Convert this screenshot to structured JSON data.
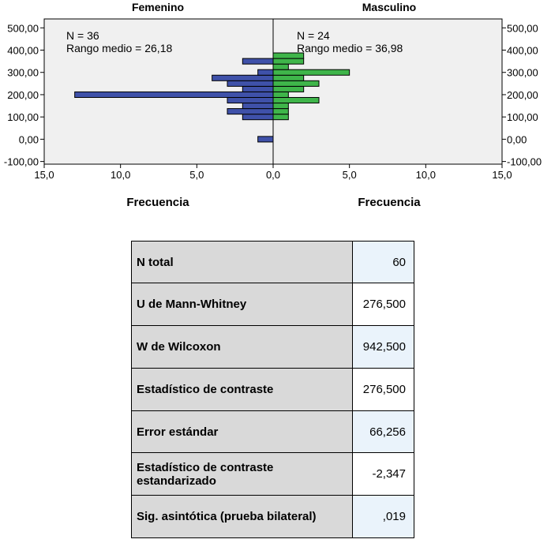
{
  "chart_data": {
    "type": "bar",
    "orientation": "horizontal",
    "layout": "back-to-back",
    "panels": [
      {
        "title": "Femenino",
        "n_label": "N = 36",
        "rank_label": "Rango medio = 26,18",
        "color": "#3f51a9",
        "direction": "left"
      },
      {
        "title": "Masculino",
        "n_label": "N = 24",
        "rank_label": "Rango medio = 36,98",
        "color": "#3fb54a",
        "direction": "right"
      }
    ],
    "bin_width": 25,
    "series": [
      {
        "name": "Femenino",
        "bins": [
          {
            "y": 0,
            "count": 1
          },
          {
            "y": 100,
            "count": 2
          },
          {
            "y": 125,
            "count": 3
          },
          {
            "y": 150,
            "count": 2
          },
          {
            "y": 175,
            "count": 3
          },
          {
            "y": 200,
            "count": 13
          },
          {
            "y": 225,
            "count": 2
          },
          {
            "y": 250,
            "count": 3
          },
          {
            "y": 275,
            "count": 4
          },
          {
            "y": 300,
            "count": 1
          },
          {
            "y": 350,
            "count": 2
          }
        ]
      },
      {
        "name": "Masculino",
        "bins": [
          {
            "y": 100,
            "count": 1
          },
          {
            "y": 125,
            "count": 1
          },
          {
            "y": 150,
            "count": 1
          },
          {
            "y": 175,
            "count": 3
          },
          {
            "y": 200,
            "count": 1
          },
          {
            "y": 225,
            "count": 2
          },
          {
            "y": 250,
            "count": 3
          },
          {
            "y": 275,
            "count": 2
          },
          {
            "y": 300,
            "count": 5
          },
          {
            "y": 325,
            "count": 1
          },
          {
            "y": 350,
            "count": 2
          },
          {
            "y": 375,
            "count": 2
          }
        ]
      }
    ],
    "y_ticks": [
      "-100,00",
      "0,00",
      "100,00",
      "200,00",
      "300,00",
      "400,00",
      "500,00"
    ],
    "y_tick_values": [
      -100,
      0,
      100,
      200,
      300,
      400,
      500
    ],
    "ylim": [
      -112,
      540
    ],
    "x_ticks": [
      "15,0",
      "10,0",
      "5,0",
      "0,0",
      "5,0",
      "10,0",
      "15,0"
    ],
    "x_tick_values": [
      -15,
      -10,
      -5,
      0,
      5,
      10,
      15
    ],
    "xlim": [
      -15,
      15
    ],
    "xlabels": [
      "Frecuencia",
      "Frecuencia"
    ],
    "plot_background": "#f0f0f0"
  },
  "stats_table": [
    {
      "label": "N total",
      "value": "60"
    },
    {
      "label": "U de Mann-Whitney",
      "value": "276,500"
    },
    {
      "label": "W de Wilcoxon",
      "value": "942,500"
    },
    {
      "label": "Estadístico de contraste",
      "value": "276,500"
    },
    {
      "label": "Error estándar",
      "value": "66,256"
    },
    {
      "label": "Estadístico de contraste estandarizado",
      "value": "-2,347"
    },
    {
      "label": "Sig. asintótica (prueba bilateral)",
      "value": ",019"
    }
  ],
  "colors": {
    "value_cell_alt": "#eaf3fb",
    "value_cell": "#ffffff",
    "label_cell": "#d9d9d9"
  }
}
